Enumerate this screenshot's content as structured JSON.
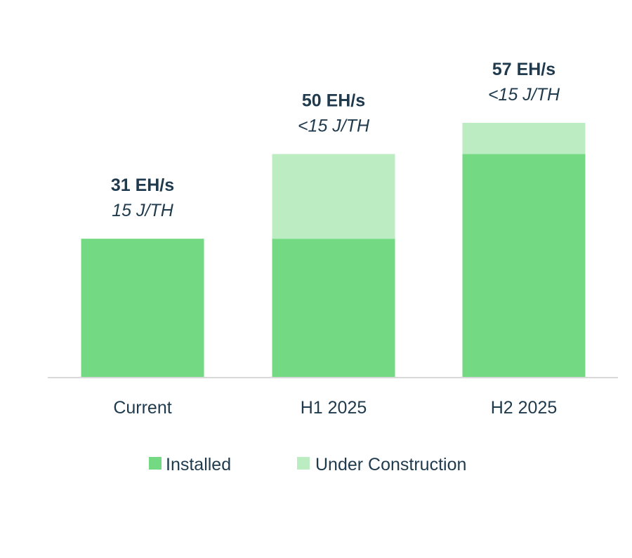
{
  "chart_data": {
    "type": "bar",
    "stacked": true,
    "categories": [
      "Current",
      "H1 2025",
      "H2 2025"
    ],
    "series": [
      {
        "name": "Installed",
        "values": [
          31,
          31,
          50
        ],
        "color": "#73d983"
      },
      {
        "name": "Under Construction",
        "values": [
          0,
          19,
          7
        ],
        "color": "#bbecc2"
      }
    ],
    "totals": [
      "31 EH/s",
      "50 EH/s",
      "57 EH/s"
    ],
    "efficiency": [
      "15 J/TH",
      "<15 J/TH",
      "<15 J/TH"
    ],
    "ylim": [
      0,
      57
    ],
    "grid": false,
    "axis_color": "#d9d9d9",
    "text_color": "#1f3a4d",
    "legend_position": "bottom"
  }
}
